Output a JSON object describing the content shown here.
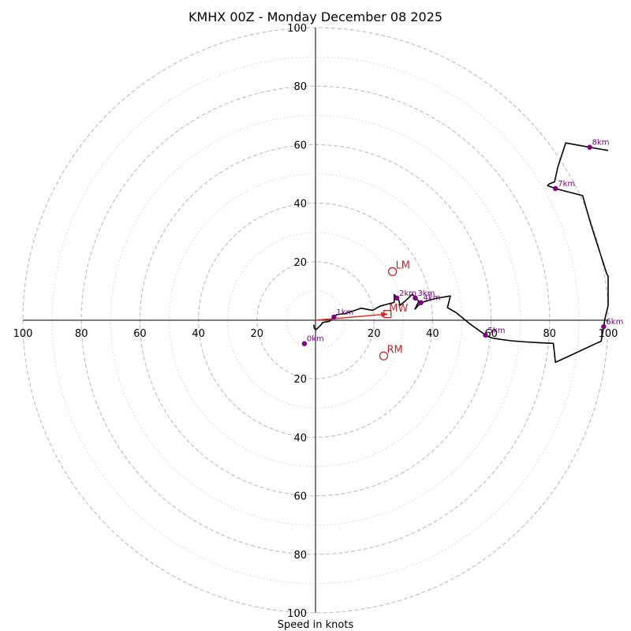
{
  "chart_data": {
    "type": "hodograph",
    "title": "KMHX 00Z - Monday December 08 2025",
    "xlabel": "Speed in knots",
    "units": "knots",
    "rlim": 100,
    "ring_major": [
      20,
      40,
      60,
      80,
      100
    ],
    "ring_minor": [
      10,
      30,
      50,
      70,
      90
    ],
    "x_tick_labels": [
      "100",
      "80",
      "60",
      "40",
      "20",
      "20",
      "40",
      "60",
      "80",
      "100"
    ],
    "x_tick_values": [
      -100,
      -80,
      -60,
      -40,
      -20,
      20,
      40,
      60,
      80,
      100
    ],
    "y_tick_labels": [
      "100",
      "80",
      "60",
      "40",
      "20",
      "20",
      "40",
      "60",
      "80",
      "100"
    ],
    "y_tick_values": [
      100,
      80,
      60,
      40,
      20,
      -20,
      -40,
      -60,
      -80,
      -100
    ],
    "colors": {
      "trace": "#000000",
      "height_marker": "#800080",
      "motion": "#c0262a",
      "mean_wind_arrow": "#e8251d",
      "ring": "#bdbdbd",
      "axis": "#000000"
    },
    "wind_trace": [
      [
        -0.6,
        -1.5
      ],
      [
        -0.4,
        -2.8
      ],
      [
        0.2,
        -3.2
      ],
      [
        1.9,
        -1.6
      ],
      [
        2.4,
        -0.8
      ],
      [
        3.4,
        -0.6
      ],
      [
        4.7,
        -0.4
      ],
      [
        6.3,
        1.1
      ],
      [
        7.2,
        1.9
      ],
      [
        10.1,
        2.3
      ],
      [
        12.1,
        2.9
      ],
      [
        15.6,
        4.1
      ],
      [
        17.3,
        3.8
      ],
      [
        19.6,
        3.4
      ],
      [
        22.0,
        4.8
      ],
      [
        24.2,
        5.4
      ],
      [
        26.9,
        6.1
      ],
      [
        26.9,
        8.8
      ],
      [
        28.4,
        7.0
      ],
      [
        28.9,
        5.1
      ],
      [
        30.9,
        6.8
      ],
      [
        33.1,
        8.9
      ],
      [
        34.6,
        7.2
      ],
      [
        35.3,
        6.5
      ],
      [
        34.0,
        3.8
      ],
      [
        36.0,
        6.0
      ],
      [
        38.4,
        6.7
      ],
      [
        40.9,
        7.4
      ],
      [
        46.1,
        8.3
      ],
      [
        45.1,
        4.3
      ],
      [
        48.2,
        2.5
      ],
      [
        52.3,
        -0.9
      ],
      [
        54.1,
        -2.2
      ],
      [
        58.1,
        -5.1
      ],
      [
        58.7,
        -5.5
      ],
      [
        60.1,
        -6.0
      ],
      [
        62.2,
        -6.4
      ],
      [
        66.8,
        -7.0
      ],
      [
        71.8,
        -7.4
      ],
      [
        76.8,
        -7.7
      ],
      [
        81.3,
        -7.9
      ],
      [
        82.0,
        -14.4
      ],
      [
        87.4,
        -11.9
      ],
      [
        96.6,
        -7.6
      ],
      [
        97.6,
        -7.2
      ],
      [
        98.5,
        -2.2
      ],
      [
        98.9,
        0.4
      ],
      [
        100.0,
        5.0
      ],
      [
        100.0,
        15.0
      ],
      [
        99.5,
        16.0
      ],
      [
        94.1,
        32.8
      ],
      [
        91.3,
        42.6
      ],
      [
        82.0,
        45.0
      ],
      [
        79.3,
        46.0
      ],
      [
        79.9,
        46.6
      ],
      [
        81.7,
        47.3
      ],
      [
        82.8,
        52.3
      ],
      [
        85.5,
        60.6
      ],
      [
        93.7,
        59.1
      ],
      [
        100.0,
        58.0
      ]
    ],
    "height_markers": [
      {
        "label": "0km",
        "u": -3.8,
        "v": -8.0
      },
      {
        "label": "1km",
        "u": 6.3,
        "v": 1.1
      },
      {
        "label": "2km",
        "u": 27.8,
        "v": 7.6
      },
      {
        "label": "3km",
        "u": 34.1,
        "v": 7.6
      },
      {
        "label": "4km",
        "u": 36.0,
        "v": 6.0
      },
      {
        "label": "5km",
        "u": 58.1,
        "v": -5.1
      },
      {
        "label": "6km",
        "u": 98.5,
        "v": -2.2
      },
      {
        "label": "7km",
        "u": 82.0,
        "v": 45.0
      },
      {
        "label": "8km",
        "u": 93.7,
        "v": 59.1
      }
    ],
    "storm_motion": {
      "LM": {
        "label": "LM",
        "u": 26.3,
        "v": 16.6
      },
      "RM": {
        "label": "RM",
        "u": 23.3,
        "v": -12.2
      },
      "MW": {
        "label": "MW",
        "u": 24.6,
        "v": 2.1
      }
    },
    "mean_wind_arrow": {
      "from": [
        0,
        0
      ],
      "to": [
        24.6,
        2.1
      ]
    }
  }
}
